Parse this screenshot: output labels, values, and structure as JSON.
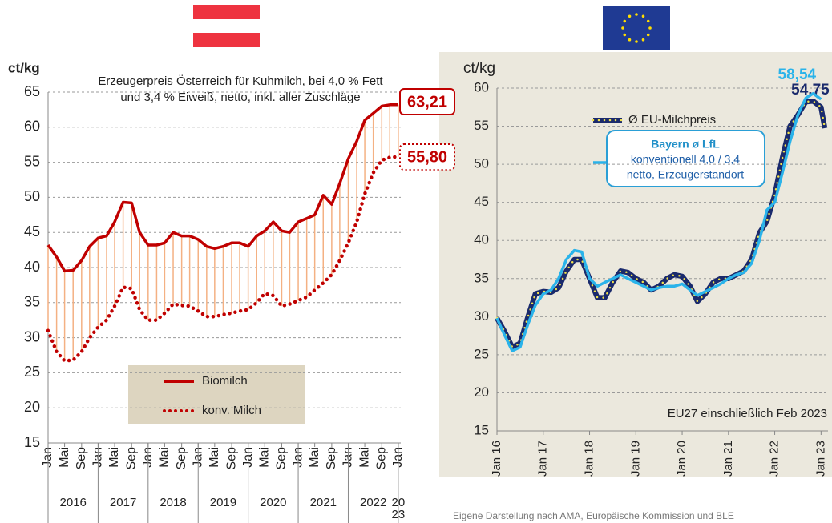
{
  "chart_data": [
    {
      "type": "line",
      "ylabel": "ct/kg",
      "title": [
        "Erzeugerpreis Österreich für Kuhmilch, bei 4,0 % Fett",
        "und 3,4 % Eiweiß, netto, inkl. aller Zuschläge"
      ],
      "x": [
        2016,
        2016.17,
        2016.33,
        2016.5,
        2016.67,
        2016.83,
        2017,
        2017.17,
        2017.33,
        2017.5,
        2017.67,
        2017.83,
        2018,
        2018.17,
        2018.33,
        2018.5,
        2018.67,
        2018.83,
        2019,
        2019.17,
        2019.33,
        2019.5,
        2019.67,
        2019.83,
        2020,
        2020.17,
        2020.33,
        2020.5,
        2020.67,
        2020.83,
        2021,
        2021.17,
        2021.33,
        2021.5,
        2021.67,
        2021.83,
        2022,
        2022.17,
        2022.33,
        2022.5,
        2022.67,
        2022.83,
        2023
      ],
      "series": [
        {
          "name": "Biomilch",
          "color": "#c00000",
          "style": "solid",
          "values": [
            43.2,
            41.5,
            39.5,
            39.6,
            41,
            43,
            44.2,
            44.5,
            46.5,
            49.3,
            49.2,
            45,
            43.2,
            43.2,
            43.5,
            45,
            44.5,
            44.5,
            44,
            43,
            42.7,
            43,
            43.5,
            43.5,
            43,
            44.5,
            45.2,
            46.5,
            45.2,
            45,
            46.5,
            47,
            47.5,
            50.3,
            49,
            52,
            55.5,
            58,
            61,
            62,
            63,
            63.2,
            63.21
          ],
          "value_labels": [
            null,
            null,
            null,
            null,
            null,
            null,
            null,
            null,
            null,
            null,
            null,
            null,
            null,
            null,
            null,
            null,
            null,
            null,
            null,
            null,
            null,
            null,
            null,
            null,
            null,
            null,
            null,
            null,
            null,
            null,
            null,
            null,
            null,
            null,
            null,
            null,
            null,
            null,
            null,
            null,
            null,
            null,
            "63,21"
          ]
        },
        {
          "name": "konv. Milch",
          "color": "#c00000",
          "style": "dotted",
          "values": [
            31,
            28,
            26.7,
            26.8,
            28,
            30,
            31.5,
            32.5,
            34.5,
            37.2,
            37,
            34,
            32.5,
            32.5,
            33.5,
            34.8,
            34.6,
            34.5,
            33.8,
            33,
            33,
            33.3,
            33.5,
            33.8,
            34,
            35,
            36.3,
            36,
            34.5,
            34.8,
            35.3,
            35.8,
            36.8,
            37.8,
            39,
            41,
            43.5,
            46.5,
            50.5,
            53.5,
            55.3,
            55.7,
            55.8
          ],
          "value_labels": [
            null,
            null,
            null,
            null,
            null,
            null,
            null,
            null,
            null,
            null,
            null,
            null,
            null,
            null,
            null,
            null,
            null,
            null,
            null,
            null,
            null,
            null,
            null,
            null,
            null,
            null,
            null,
            null,
            null,
            null,
            null,
            null,
            null,
            null,
            null,
            null,
            null,
            null,
            null,
            null,
            null,
            null,
            "55,80"
          ]
        }
      ],
      "drop_lines": true,
      "drop_color": "#f4b183",
      "xlim": [
        2016,
        2023.05
      ],
      "ylim": [
        15,
        65
      ],
      "yticks": [
        15,
        20,
        25,
        30,
        35,
        40,
        45,
        50,
        55,
        60,
        65
      ],
      "grid": true,
      "xticks": [
        {
          "value": 2016,
          "label": "Jan"
        },
        {
          "value": 2016.33,
          "label": "Mai"
        },
        {
          "value": 2016.67,
          "label": "Sep"
        },
        {
          "value": 2017,
          "label": "Jan"
        },
        {
          "value": 2017.33,
          "label": "Mai"
        },
        {
          "value": 2017.67,
          "label": "Sep"
        },
        {
          "value": 2018,
          "label": "Jan"
        },
        {
          "value": 2018.33,
          "label": "Mai"
        },
        {
          "value": 2018.67,
          "label": "Sep"
        },
        {
          "value": 2019,
          "label": "Jan"
        },
        {
          "value": 2019.33,
          "label": "Mai"
        },
        {
          "value": 2019.67,
          "label": "Sep"
        },
        {
          "value": 2020,
          "label": "Jan"
        },
        {
          "value": 2020.33,
          "label": "Mai"
        },
        {
          "value": 2020.67,
          "label": "Sep"
        },
        {
          "value": 2021,
          "label": "Jan"
        },
        {
          "value": 2021.33,
          "label": "Mai"
        },
        {
          "value": 2021.67,
          "label": "Sep"
        },
        {
          "value": 2022,
          "label": "Jan"
        },
        {
          "value": 2022.33,
          "label": "Mai"
        },
        {
          "value": 2022.67,
          "label": "Sep"
        },
        {
          "value": 2023,
          "label": "Jan"
        }
      ],
      "year_labels": [
        "2016",
        "2017",
        "2018",
        "2019",
        "2020",
        "2021",
        "2022",
        "20\n23"
      ]
    },
    {
      "type": "line",
      "ylabel": "ct/kg",
      "x": [
        2016,
        2016.17,
        2016.33,
        2016.5,
        2016.67,
        2016.83,
        2017,
        2017.17,
        2017.33,
        2017.5,
        2017.67,
        2017.83,
        2018,
        2018.17,
        2018.33,
        2018.5,
        2018.67,
        2018.83,
        2019,
        2019.17,
        2019.33,
        2019.5,
        2019.67,
        2019.83,
        2020,
        2020.17,
        2020.33,
        2020.5,
        2020.67,
        2020.83,
        2021,
        2021.17,
        2021.33,
        2021.5,
        2021.67,
        2021.83,
        2022,
        2022.17,
        2022.33,
        2022.5,
        2022.67,
        2022.83,
        2023,
        2023.08
      ],
      "series": [
        {
          "name": "Ø EU-Milchpreis",
          "color": "#1a2a6c",
          "style": "dotted-overlay",
          "dot_color": "#f2e24b",
          "values": [
            29.8,
            28,
            26,
            26.5,
            30,
            33,
            33.3,
            33.2,
            33.8,
            36,
            37.5,
            37.5,
            35,
            32.5,
            32.5,
            34.5,
            36,
            35.8,
            35,
            34.5,
            33.5,
            34,
            35,
            35.5,
            35.3,
            34,
            32,
            33,
            34.5,
            35,
            35,
            35.5,
            36,
            37.5,
            41,
            42.5,
            46,
            51,
            55,
            56.5,
            58.2,
            58.3,
            57.5,
            54.75
          ],
          "value_labels": [
            null,
            null,
            null,
            null,
            null,
            null,
            null,
            null,
            null,
            null,
            null,
            null,
            null,
            null,
            null,
            null,
            null,
            null,
            null,
            null,
            null,
            null,
            null,
            null,
            null,
            null,
            null,
            null,
            null,
            null,
            null,
            null,
            null,
            null,
            null,
            null,
            null,
            null,
            null,
            null,
            null,
            null,
            null,
            "54,75"
          ]
        },
        {
          "name": "Bayern ø LfL",
          "color": "#2ab3ea",
          "style": "solid",
          "values": [
            29.8,
            27.5,
            25.5,
            26,
            29,
            31.5,
            33,
            33.5,
            35,
            37.5,
            38.7,
            38.5,
            35,
            34,
            34.5,
            35,
            35.5,
            35,
            34.5,
            34,
            33.5,
            33.8,
            34,
            34,
            34.3,
            33.5,
            32.8,
            33.3,
            33.8,
            34.3,
            35,
            35.5,
            35.8,
            37,
            40,
            44,
            45,
            49,
            53,
            56.5,
            58.7,
            59.3,
            58.54,
            null
          ],
          "value_labels": [
            null,
            null,
            null,
            null,
            null,
            null,
            null,
            null,
            null,
            null,
            null,
            null,
            null,
            null,
            null,
            null,
            null,
            null,
            null,
            null,
            null,
            null,
            null,
            null,
            null,
            null,
            null,
            null,
            null,
            null,
            null,
            null,
            null,
            null,
            null,
            null,
            null,
            null,
            null,
            null,
            null,
            null,
            "58,54",
            null
          ]
        }
      ],
      "legend_note": [
        "konventionell 4,0 / 3,4",
        "netto, Erzeugerstandort"
      ],
      "note": "EU27 einschließlich Feb 2023",
      "xlim": [
        2016,
        2023.15
      ],
      "ylim": [
        15,
        60
      ],
      "yticks": [
        15,
        20,
        25,
        30,
        35,
        40,
        45,
        50,
        55,
        60
      ],
      "grid": true,
      "xticks": [
        {
          "value": 2016,
          "label": "Jan 16"
        },
        {
          "value": 2017,
          "label": "Jan 17"
        },
        {
          "value": 2018,
          "label": "Jan 18"
        },
        {
          "value": 2019,
          "label": "Jan 19"
        },
        {
          "value": 2020,
          "label": "Jan 20"
        },
        {
          "value": 2021,
          "label": "Jan 21"
        },
        {
          "value": 2022,
          "label": "Jan 22"
        },
        {
          "value": 2023,
          "label": "Jan 23"
        }
      ]
    }
  ],
  "source": "Eigene Darstellung nach AMA, Europäische Kommission und BLE"
}
